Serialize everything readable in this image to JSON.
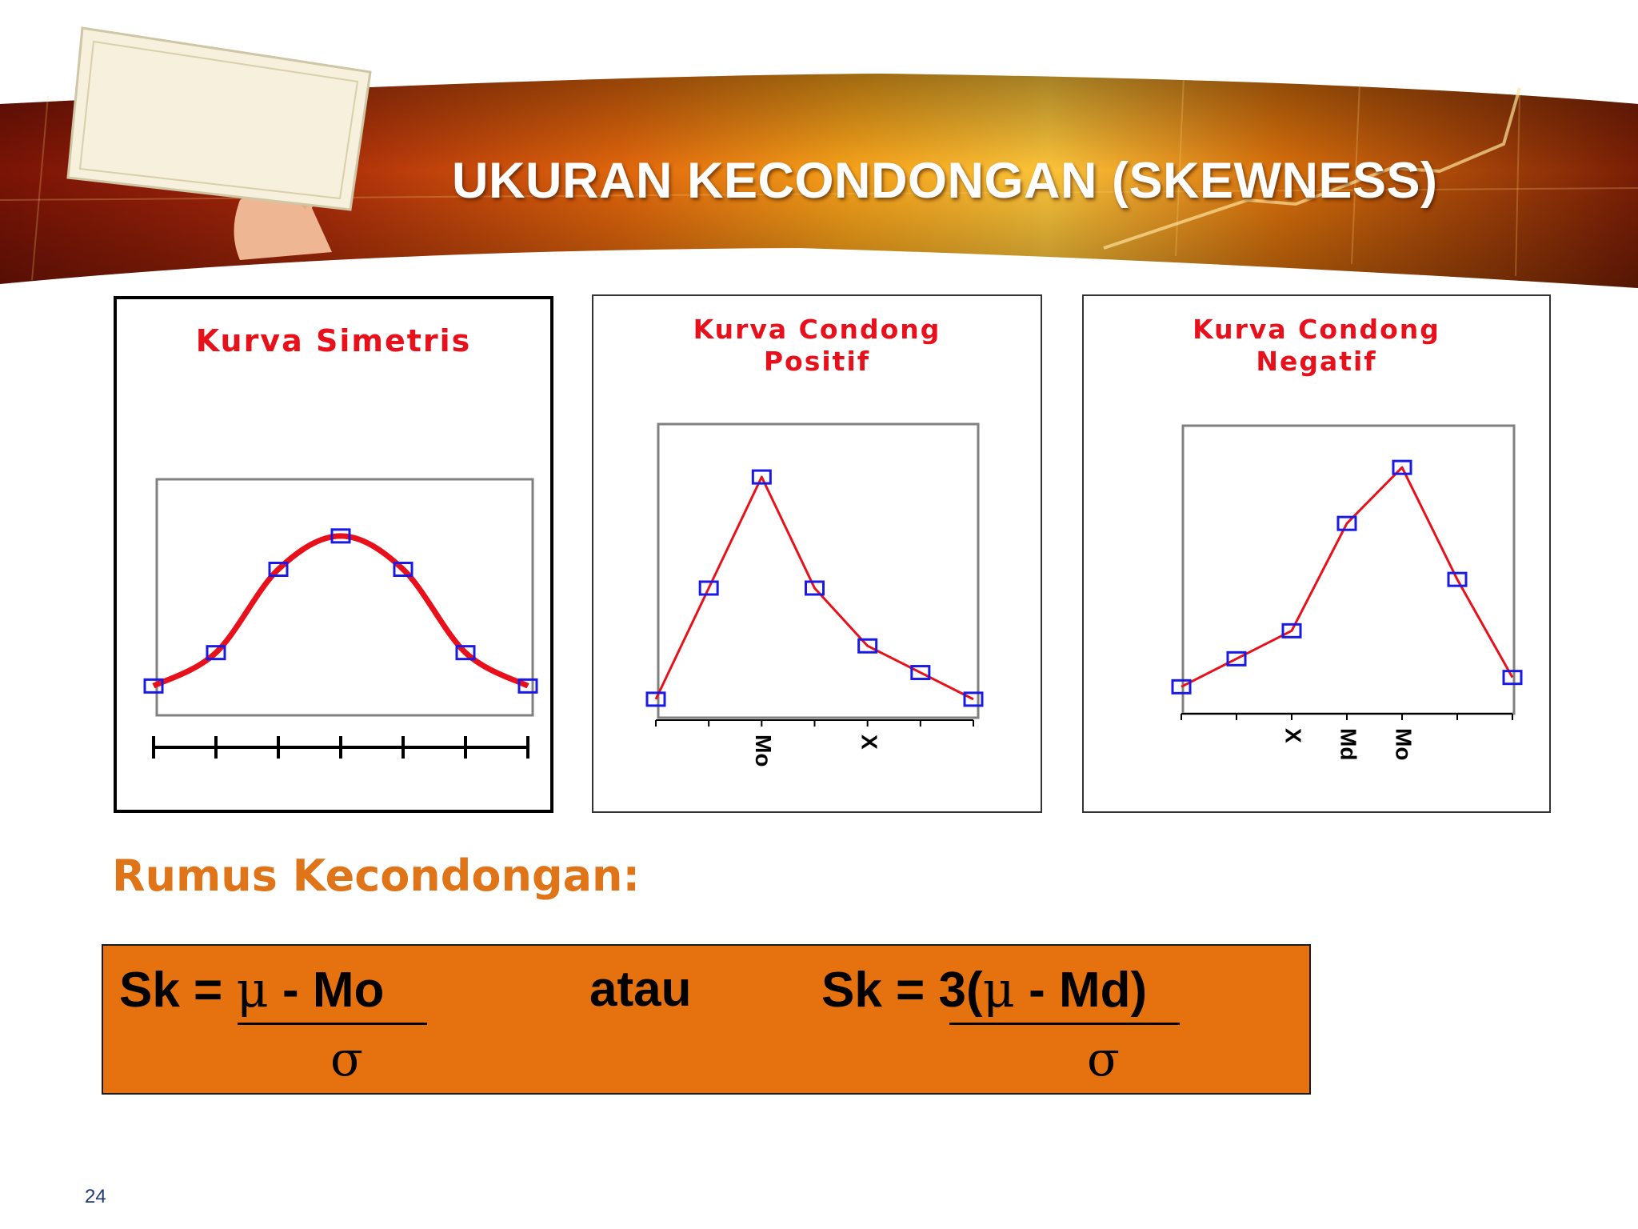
{
  "slide": {
    "title": "UKURAN KECONDONGAN (SKEWNESS)",
    "page_number": "24"
  },
  "chart_data": [
    {
      "type": "line",
      "title_lines": [
        "Kurva Simetris"
      ],
      "line_color": "#e8101a",
      "marker_color": "#1a1ae6",
      "x": [
        1,
        2,
        3,
        4,
        5,
        6,
        7
      ],
      "y": [
        1,
        2,
        4.5,
        5.5,
        4.5,
        2,
        1
      ],
      "tick_labels": []
    },
    {
      "type": "line",
      "title_lines": [
        "Kurva Condong",
        "Positif"
      ],
      "line_color": "#e8101a",
      "marker_color": "#1a1ae6",
      "x": [
        1,
        2,
        3,
        4,
        5,
        6,
        7
      ],
      "y": [
        2,
        4.5,
        7,
        4.5,
        3.2,
        2.6,
        2
      ],
      "tick_labels": [
        {
          "text": "Mo",
          "x": 3
        },
        {
          "text": "X",
          "x": 5
        }
      ]
    },
    {
      "type": "line",
      "title_lines": [
        "Kurva Condong",
        "Negatif"
      ],
      "line_color": "#e8101a",
      "marker_color": "#1a1ae6",
      "x": [
        1,
        2,
        3,
        4,
        5,
        6,
        7
      ],
      "y": [
        2,
        2.6,
        3.2,
        5.5,
        6.7,
        4.3,
        2.2
      ],
      "tick_labels": [
        {
          "text": "X",
          "x": 3
        },
        {
          "text": "Md",
          "x": 4
        },
        {
          "text": "Mo",
          "x": 5
        }
      ]
    }
  ],
  "formula": {
    "heading": "Rumus Kecondongan:",
    "f1_lhs": "Sk = ",
    "f1_mu": "μ",
    "f1_rest": " -  Mo",
    "f1_den": "σ",
    "connector": "atau",
    "f2_lhs": "Sk = ",
    "f2_open": "3(",
    "f2_mu": "μ",
    "f2_rest": " -  Md)",
    "f2_den": "σ"
  }
}
